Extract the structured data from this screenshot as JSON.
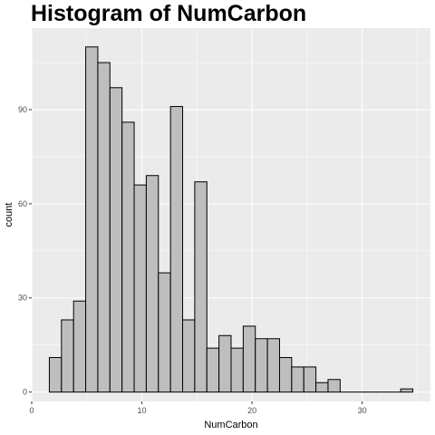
{
  "chart_data": {
    "type": "bar",
    "title": "Histogram of NumCarbon",
    "xlabel": "NumCarbon",
    "ylabel": "count",
    "bin_width": 1.1,
    "x_bins_start": [
      1.6,
      2.7,
      3.8,
      4.9,
      6.0,
      7.1,
      8.2,
      9.3,
      10.4,
      11.5,
      12.6,
      13.7,
      14.8,
      15.9,
      17.0,
      18.1,
      19.2,
      20.3,
      21.4,
      22.5,
      23.6,
      24.7,
      25.8,
      26.9,
      28.0,
      29.1,
      30.2,
      31.3,
      32.4,
      33.5
    ],
    "values": [
      11,
      23,
      29,
      110,
      105,
      97,
      86,
      66,
      69,
      38,
      91,
      23,
      67,
      14,
      18,
      14,
      21,
      17,
      17,
      11,
      8,
      8,
      3,
      4,
      0,
      0,
      0,
      0,
      0,
      1
    ],
    "xlim": [
      0,
      36.2
    ],
    "ylim": [
      -3,
      116
    ],
    "x_ticks": [
      0,
      10,
      20,
      30
    ],
    "y_ticks": [
      0,
      30,
      60,
      90
    ],
    "grid": true,
    "colors": {
      "panel_background": "#ebebeb",
      "grid_major": "#ffffff",
      "bar_fill": "#bebebe",
      "bar_outline": "#000000"
    }
  }
}
